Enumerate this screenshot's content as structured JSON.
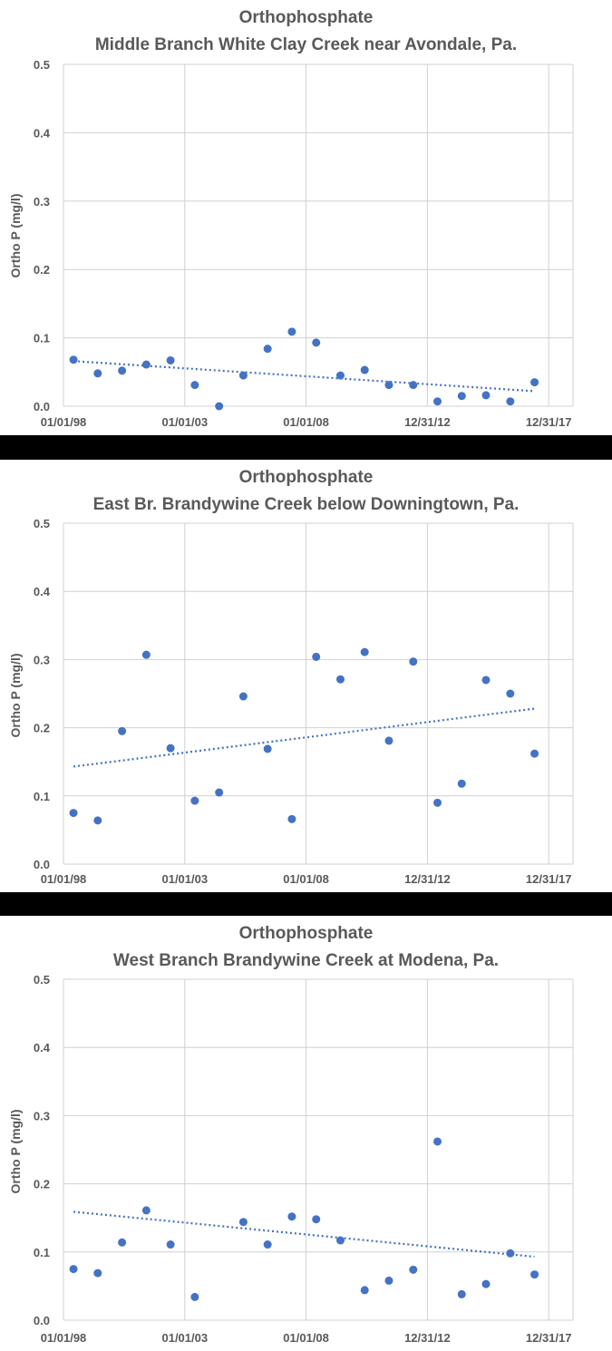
{
  "chart_data": [
    {
      "type": "scatter",
      "title": "Orthophosphate",
      "subtitle": "Middle Branch White Clay Creek near Avondale, Pa.",
      "xlabel": "",
      "ylabel": "Ortho P (mg/l)",
      "x_ticks": [
        "01/01/98",
        "01/01/03",
        "01/01/08",
        "12/31/12",
        "12/31/17"
      ],
      "y_ticks": [
        "0.0",
        "0.1",
        "0.2",
        "0.3",
        "0.4",
        "0.5"
      ],
      "xlim": [
        "1998-01-01",
        "2019-01-01"
      ],
      "ylim": [
        0,
        0.5
      ],
      "grid": true,
      "marker_color": "#4472C4",
      "trendline": {
        "style": "dotted linear",
        "y_start": 0.066,
        "y_end": 0.022
      },
      "series": [
        {
          "x": [
            "1998-06-01",
            "1999-06-01",
            "2000-06-01",
            "2001-06-01",
            "2002-06-01",
            "2003-06-01",
            "2004-06-01",
            "2005-06-01",
            "2006-06-01",
            "2007-06-01",
            "2008-06-01",
            "2009-06-01",
            "2010-06-01",
            "2011-06-01",
            "2012-06-01",
            "2013-06-01",
            "2014-06-01",
            "2015-06-01",
            "2016-06-01",
            "2017-06-01"
          ],
          "y": [
            0.068,
            0.048,
            0.052,
            0.061,
            0.067,
            0.031,
            0.0,
            0.045,
            0.084,
            0.109,
            0.093,
            0.045,
            0.053,
            0.031,
            0.031,
            0.007,
            0.015,
            0.016,
            0.007,
            0.035
          ]
        }
      ]
    },
    {
      "type": "scatter",
      "title": "Orthophosphate",
      "subtitle": "East Br. Brandywine Creek below Downingtown, Pa.",
      "xlabel": "",
      "ylabel": "Ortho P (mg/l)",
      "x_ticks": [
        "01/01/98",
        "01/01/03",
        "01/01/08",
        "12/31/12",
        "12/31/17"
      ],
      "y_ticks": [
        "0.0",
        "0.1",
        "0.2",
        "0.3",
        "0.4",
        "0.5"
      ],
      "xlim": [
        "1998-01-01",
        "2019-01-01"
      ],
      "ylim": [
        0,
        0.5
      ],
      "grid": true,
      "marker_color": "#4472C4",
      "trendline": {
        "style": "dotted linear",
        "y_start": 0.143,
        "y_end": 0.228
      },
      "series": [
        {
          "x": [
            "1998-06-01",
            "1999-06-01",
            "2000-06-01",
            "2001-06-01",
            "2002-06-01",
            "2003-06-01",
            "2004-06-01",
            "2005-06-01",
            "2006-06-01",
            "2007-06-01",
            "2008-06-01",
            "2009-06-01",
            "2010-06-01",
            "2011-06-01",
            "2012-06-01",
            "2013-06-01",
            "2014-06-01",
            "2015-06-01",
            "2016-06-01",
            "2017-06-01"
          ],
          "y": [
            0.075,
            0.064,
            0.195,
            0.307,
            0.17,
            0.093,
            0.105,
            0.246,
            0.169,
            0.066,
            0.304,
            0.271,
            0.311,
            0.181,
            0.297,
            0.09,
            0.118,
            0.27,
            0.25,
            0.162
          ]
        }
      ]
    },
    {
      "type": "scatter",
      "title": "Orthophosphate",
      "subtitle": "West Branch Brandywine Creek at Modena, Pa.",
      "xlabel": "",
      "ylabel": "Ortho P (mg/l)",
      "x_ticks": [
        "01/01/98",
        "01/01/03",
        "01/01/08",
        "12/31/12",
        "12/31/17"
      ],
      "y_ticks": [
        "0.0",
        "0.1",
        "0.2",
        "0.3",
        "0.4",
        "0.5"
      ],
      "xlim": [
        "1998-01-01",
        "2019-01-01"
      ],
      "ylim": [
        0,
        0.5
      ],
      "grid": true,
      "marker_color": "#4472C4",
      "trendline": {
        "style": "dotted linear",
        "y_start": 0.159,
        "y_end": 0.093
      },
      "series": [
        {
          "x": [
            "1998-06-01",
            "1999-06-01",
            "2000-06-01",
            "2001-06-01",
            "2002-06-01",
            "2003-06-01",
            "2005-06-01",
            "2006-06-01",
            "2007-06-01",
            "2008-06-01",
            "2009-06-01",
            "2010-06-01",
            "2011-06-01",
            "2012-06-01",
            "2013-06-01",
            "2014-06-01",
            "2015-06-01",
            "2016-06-01",
            "2017-06-01"
          ],
          "y": [
            0.075,
            0.069,
            0.114,
            0.161,
            0.111,
            0.034,
            0.144,
            0.111,
            0.152,
            0.148,
            0.117,
            0.044,
            0.058,
            0.074,
            0.262,
            0.038,
            0.053,
            0.098,
            0.067
          ]
        }
      ]
    }
  ]
}
